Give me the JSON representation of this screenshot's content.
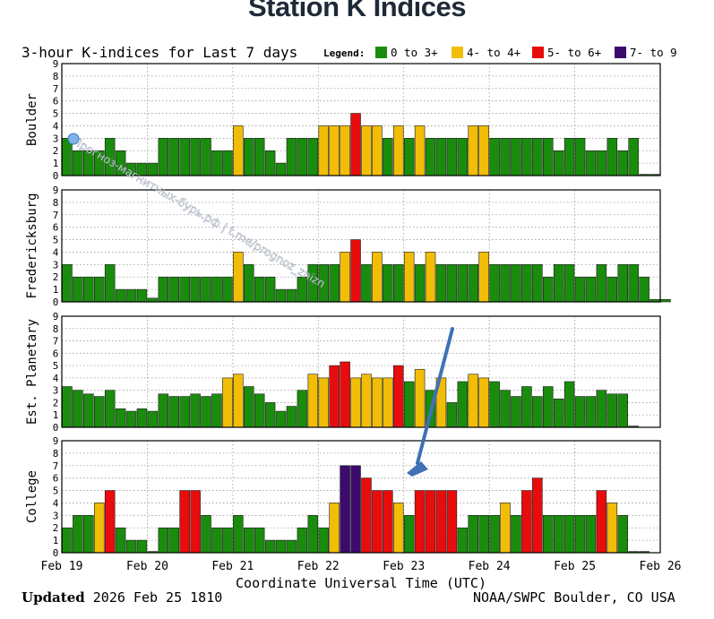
{
  "title": "Station K Indices",
  "chart_data": {
    "type": "bar",
    "subtitle": "3-hour K-indices for Last 7 days",
    "legend": {
      "label": "Legend:",
      "items": [
        {
          "label": "0 to 3+",
          "color": "#1a8c0d"
        },
        {
          "label": "4- to 4+",
          "color": "#f2bd06"
        },
        {
          "label": "5- to 6+",
          "color": "#e80c0c"
        },
        {
          "label": "7- to 9",
          "color": "#3d0a6e"
        }
      ]
    },
    "x_ticks": [
      "Feb 19",
      "Feb 20",
      "Feb 21",
      "Feb 22",
      "Feb 23",
      "Feb 24",
      "Feb 25",
      "Feb 26"
    ],
    "xlabel": "Coordinate Universal Time (UTC)",
    "y_ticks": [
      "0",
      "1",
      "2",
      "3",
      "4",
      "5",
      "6",
      "7",
      "8",
      "9"
    ],
    "ylim": [
      0,
      9
    ],
    "intervals_per_day": 8,
    "panels": [
      {
        "name": "Boulder",
        "values": [
          3,
          2,
          2,
          2,
          3,
          2,
          1,
          1,
          1,
          3,
          3,
          3,
          3,
          3,
          2,
          2,
          4,
          3,
          3,
          2,
          1,
          3,
          3,
          3,
          4,
          4,
          4,
          5,
          4,
          4,
          3,
          4,
          3,
          4,
          3,
          3,
          3,
          3,
          4,
          4,
          3,
          3,
          3,
          3,
          3,
          3,
          2,
          3,
          3,
          2,
          2,
          3,
          2,
          3,
          0.1,
          0.1
        ]
      },
      {
        "name": "Fredericksburg",
        "values": [
          3,
          2,
          2,
          2,
          3,
          1,
          1,
          1,
          0.3,
          2,
          2,
          2,
          2,
          2,
          2,
          2,
          4,
          3,
          2,
          2,
          1,
          1,
          2,
          3,
          3,
          3,
          4,
          5,
          3,
          4,
          3,
          3,
          4,
          3,
          4,
          3,
          3,
          3,
          3,
          4,
          3,
          3,
          3,
          3,
          3,
          2,
          3,
          3,
          2,
          2,
          3,
          2,
          3,
          3,
          2,
          0.2,
          0.2
        ]
      },
      {
        "name": "Est. Planetary",
        "values": [
          3.3,
          3,
          2.7,
          2.5,
          3,
          1.5,
          1.3,
          1.5,
          1.3,
          2.7,
          2.5,
          2.5,
          2.7,
          2.5,
          2.7,
          4,
          4.3,
          3.3,
          2.7,
          2,
          1.3,
          1.7,
          3,
          4.3,
          4,
          5,
          5.3,
          4,
          4.3,
          4,
          4,
          5,
          3.7,
          4.7,
          3,
          4,
          2,
          3.7,
          4.3,
          4,
          3.7,
          3,
          2.5,
          3.3,
          2.5,
          3.3,
          2.3,
          3.7,
          2.5,
          2.5,
          3,
          2.7,
          2.7,
          0.1
        ]
      },
      {
        "name": "College",
        "values": [
          2,
          3,
          3,
          4,
          5,
          2,
          1,
          1,
          0.1,
          2,
          2,
          5,
          5,
          3,
          2,
          2,
          3,
          2,
          2,
          1,
          1,
          1,
          2,
          3,
          2,
          4,
          7,
          7,
          6,
          5,
          5,
          4,
          3,
          5,
          5,
          5,
          5,
          2,
          3,
          3,
          3,
          4,
          3,
          5,
          6,
          3,
          3,
          3,
          3,
          3,
          5,
          4,
          3,
          0.1,
          0.1
        ]
      }
    ]
  },
  "footer": {
    "updated_label": "Updated",
    "updated_value": "2026 Feb 25 1810",
    "credit": "NOAA/SWPC Boulder, CO USA"
  },
  "watermark": "Прогноз-магнитных-бурь.рф | t.me/prognoz_zhizn"
}
